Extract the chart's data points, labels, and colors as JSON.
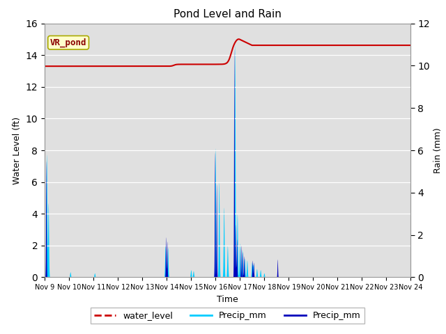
{
  "title": "Pond Level and Rain",
  "xlabel": "Time",
  "ylabel_left": "Water Level (ft)",
  "ylabel_right": "Rain (mm)",
  "annotation": "VR_pond",
  "ylim_left": [
    0,
    16
  ],
  "ylim_right": [
    0,
    12
  ],
  "yticks_left": [
    0,
    2,
    4,
    6,
    8,
    10,
    12,
    14,
    16
  ],
  "yticks_right": [
    0,
    2,
    4,
    6,
    8,
    10,
    12
  ],
  "background_color": "#e0e0e0",
  "water_level_color": "#cc0000",
  "precip_cyan_color": "#00ccff",
  "precip_blue_color": "#0000bb",
  "legend_labels": [
    "water_level",
    "Precip_mm",
    "Precip_mm"
  ],
  "xlim": [
    0,
    15
  ],
  "xtick_labels": [
    "Nov 9",
    "Nov 10",
    "Nov 11",
    "Nov 12",
    "Nov 13",
    "Nov 14",
    "Nov 15",
    "Nov 16",
    "Nov 17",
    "Nov 18",
    "Nov 19",
    "Nov 20",
    "Nov 21",
    "Nov 22",
    "Nov 23",
    "Nov 24"
  ],
  "rain_scale": 1.3333,
  "wl_start": 13.3,
  "wl_bump_day": 5.3,
  "wl_bump_val": 0.12,
  "wl_rise_day": 7.8,
  "wl_rise_val": 1.35,
  "wl_peak_day": 7.95,
  "wl_peak_val": 14.85,
  "wl_settle": 14.6
}
